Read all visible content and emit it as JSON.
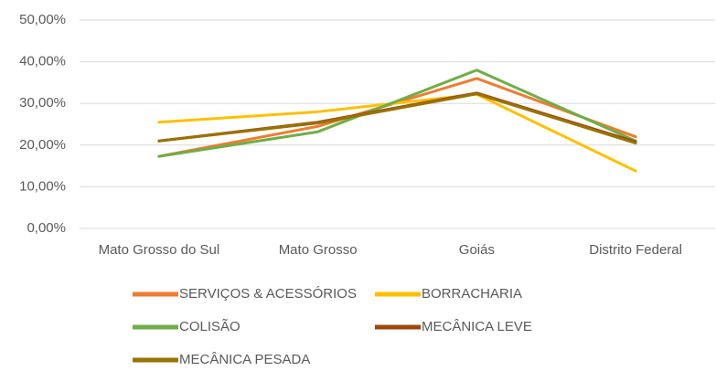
{
  "chart_data": {
    "type": "line",
    "categories": [
      "Mato Grosso do Sul",
      "Mato Grosso",
      "Goiás",
      "Distrito Federal"
    ],
    "series": [
      {
        "name": "SERVIÇOS & ACESSÓRIOS",
        "color": "#ed7d31",
        "values": [
          17.3,
          24.5,
          36,
          22
        ]
      },
      {
        "name": "BORRACHARIA",
        "color": "#ffc000",
        "values": [
          25.5,
          28,
          32.2,
          13.8
        ]
      },
      {
        "name": "COLISÃO",
        "color": "#70ad47",
        "values": [
          17.3,
          23.2,
          38,
          21
        ]
      },
      {
        "name": "MECÂNICA LEVE",
        "color": "#9e480e",
        "values": [
          21,
          25.5,
          32.5,
          20.8
        ]
      },
      {
        "name": "MECÂNICA PESADA",
        "color": "#997300",
        "values": [
          21,
          25.3,
          32.3,
          20.5
        ]
      }
    ],
    "ylim": [
      0,
      50
    ],
    "yticks": [
      {
        "value": 0,
        "label": "0,00%"
      },
      {
        "value": 10,
        "label": "10,00%"
      },
      {
        "value": 20,
        "label": "20,00%"
      },
      {
        "value": 30,
        "label": "30,00%"
      },
      {
        "value": 40,
        "label": "40,00%"
      },
      {
        "value": 50,
        "label": "50,00%"
      }
    ],
    "grid": true
  }
}
